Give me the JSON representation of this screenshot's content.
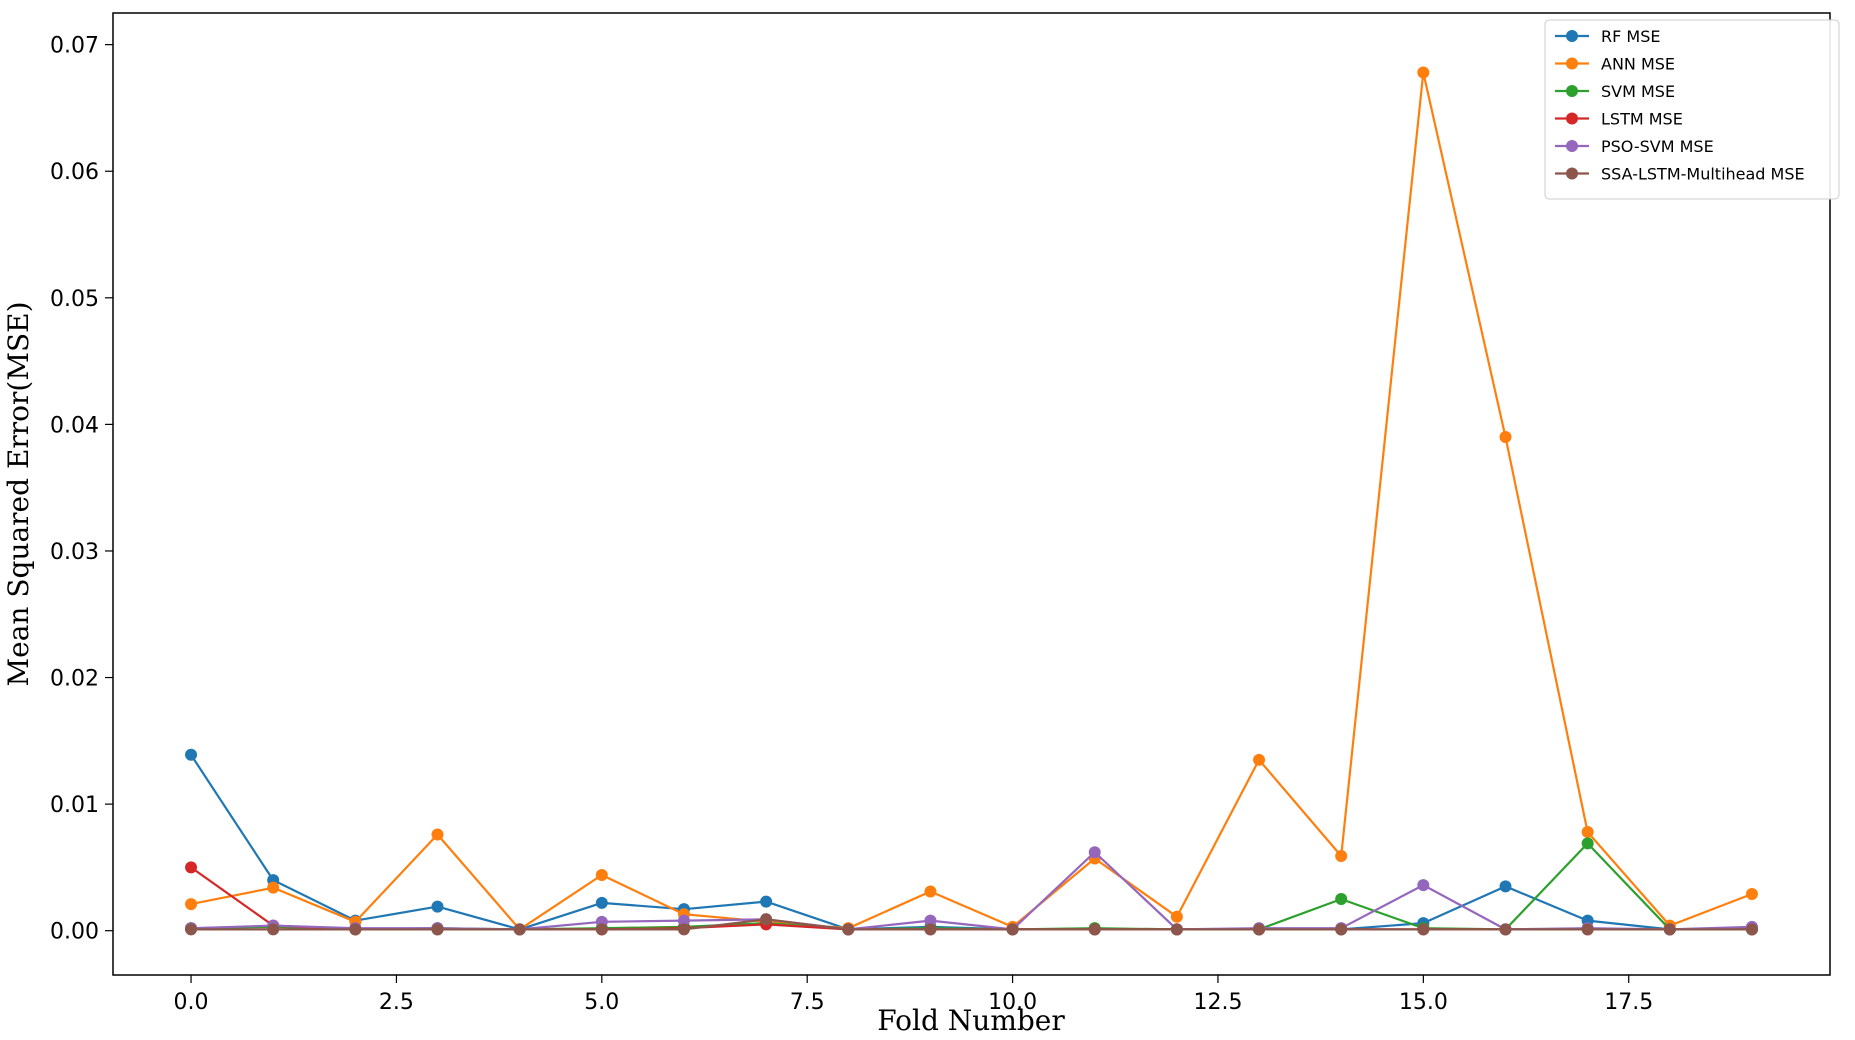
{
  "chart_data": {
    "type": "line",
    "title": "",
    "xlabel": "Fold Number",
    "ylabel": "Mean Squared Error(MSE)",
    "xlim": [
      -0.95,
      19.95
    ],
    "ylim": [
      -0.0035,
      0.0725
    ],
    "xticks": [
      0,
      2.5,
      5,
      7.5,
      10,
      12.5,
      15,
      17.5
    ],
    "xtick_labels": [
      "0.0",
      "2.5",
      "5.0",
      "7.5",
      "10.0",
      "12.5",
      "15.0",
      "17.5"
    ],
    "yticks": [
      0,
      0.01,
      0.02,
      0.03,
      0.04,
      0.05,
      0.06,
      0.07
    ],
    "ytick_labels": [
      "0.00",
      "0.01",
      "0.02",
      "0.03",
      "0.04",
      "0.05",
      "0.06",
      "0.07"
    ],
    "grid": false,
    "legend_position": "top-right",
    "x": [
      0,
      1,
      2,
      3,
      4,
      5,
      6,
      7,
      8,
      9,
      10,
      11,
      12,
      13,
      14,
      15,
      16,
      17,
      18,
      19
    ],
    "series": [
      {
        "name": "RF MSE",
        "color": "#1f77b4",
        "values": [
          0.0139,
          0.004,
          0.0008,
          0.0019,
          0.0001,
          0.0022,
          0.0017,
          0.0023,
          0.0001,
          0.0003,
          0.0001,
          0.0001,
          0.0001,
          0.0001,
          0.0001,
          0.0006,
          0.0035,
          0.0008,
          0.0001,
          0.0001
        ]
      },
      {
        "name": "ANN MSE",
        "color": "#ff7f0e",
        "values": [
          0.0021,
          0.0034,
          0.0007,
          0.0076,
          0.0001,
          0.0044,
          0.0013,
          0.0007,
          0.0002,
          0.0031,
          0.0003,
          0.0057,
          0.0011,
          0.0135,
          0.0059,
          0.0678,
          0.039,
          0.0078,
          0.0004,
          0.0029
        ]
      },
      {
        "name": "SVM MSE",
        "color": "#2ca02c",
        "values": [
          0.0002,
          0.0003,
          0.0001,
          0.0002,
          0.0001,
          0.0002,
          0.0003,
          0.0006,
          0.0001,
          0.0002,
          0.0001,
          0.0002,
          0.0001,
          0.0001,
          0.0025,
          0.0002,
          0.0001,
          0.0069,
          0.0001,
          0.0001
        ]
      },
      {
        "name": "LSTM MSE",
        "color": "#d62728",
        "values": [
          0.005,
          0.0004,
          0.0001,
          0.0001,
          0.0001,
          0.0001,
          0.0002,
          0.0005,
          0.0001,
          0.0001,
          0.0001,
          0.0001,
          0.0001,
          0.0001,
          0.0001,
          0.0001,
          0.0001,
          0.0001,
          0.0001,
          0.0001
        ]
      },
      {
        "name": "PSO-SVM MSE",
        "color": "#9467bd",
        "values": [
          0.0002,
          0.0004,
          0.0002,
          0.0002,
          0.0001,
          0.0007,
          0.0008,
          0.0009,
          0.0001,
          0.0008,
          0.0001,
          0.0062,
          0.0001,
          0.0002,
          0.0002,
          0.0036,
          0.0001,
          0.0002,
          0.0001,
          0.0003
        ]
      },
      {
        "name": "SSA-LSTM-Multihead MSE",
        "color": "#8c564b",
        "values": [
          0.0001,
          0.0001,
          0.0001,
          0.0001,
          0.0001,
          0.0001,
          0.0001,
          0.0009,
          0.0001,
          0.0001,
          0.0001,
          0.0001,
          0.0001,
          0.0001,
          0.0001,
          0.0001,
          0.0001,
          0.0001,
          0.0001,
          0.0001
        ]
      }
    ]
  }
}
